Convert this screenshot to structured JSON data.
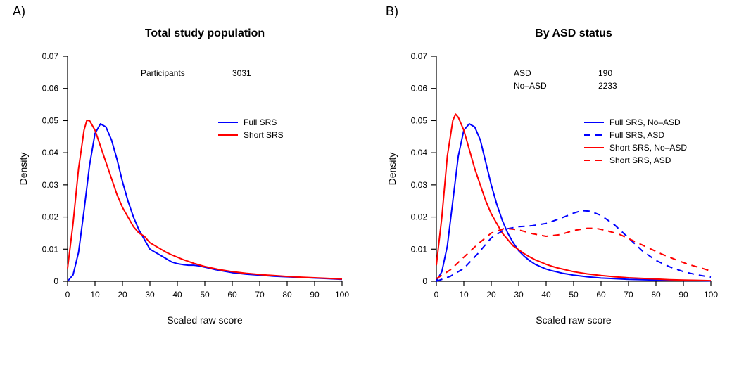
{
  "figure": {
    "background_color": "#ffffff",
    "font_family": "Arial, Helvetica, sans-serif",
    "panel_label_fontsize": 18,
    "axis_color": "#000000",
    "axis_width": 1.2,
    "tick_length": 7,
    "plot_line_width": 2
  },
  "panelA": {
    "label": "A)",
    "title": "Total study population",
    "title_fontsize": 16,
    "title_weight": "bold",
    "xlabel": "Scaled raw score",
    "ylabel": "Density",
    "label_fontsize": 14,
    "tick_fontsize": 12,
    "xlim": [
      0,
      100
    ],
    "xtick_step": 10,
    "ylim": [
      0,
      0.07
    ],
    "ytick_step": 0.01,
    "annotations": [
      {
        "label": "Participants",
        "value": "3031"
      }
    ],
    "annotation_fontsize": 12,
    "legend": {
      "fontsize": 12,
      "line_length": 28,
      "items": [
        {
          "label": "Full SRS",
          "color": "#0000ff",
          "dash": "solid"
        },
        {
          "label": "Short SRS",
          "color": "#ff0000",
          "dash": "solid"
        }
      ]
    },
    "series": [
      {
        "name": "full_srs",
        "color": "#0000ff",
        "dash": "solid",
        "points": [
          [
            0,
            0.0
          ],
          [
            2,
            0.002
          ],
          [
            4,
            0.009
          ],
          [
            6,
            0.022
          ],
          [
            8,
            0.036
          ],
          [
            10,
            0.046
          ],
          [
            12,
            0.049
          ],
          [
            14,
            0.048
          ],
          [
            16,
            0.044
          ],
          [
            18,
            0.038
          ],
          [
            20,
            0.031
          ],
          [
            22,
            0.025
          ],
          [
            24,
            0.02
          ],
          [
            26,
            0.016
          ],
          [
            28,
            0.013
          ],
          [
            30,
            0.01
          ],
          [
            32,
            0.009
          ],
          [
            34,
            0.008
          ],
          [
            36,
            0.007
          ],
          [
            38,
            0.006
          ],
          [
            40,
            0.0055
          ],
          [
            42,
            0.0052
          ],
          [
            44,
            0.005
          ],
          [
            46,
            0.005
          ],
          [
            48,
            0.0048
          ],
          [
            50,
            0.0044
          ],
          [
            52,
            0.004
          ],
          [
            54,
            0.0036
          ],
          [
            56,
            0.0033
          ],
          [
            58,
            0.003
          ],
          [
            60,
            0.0027
          ],
          [
            65,
            0.0022
          ],
          [
            70,
            0.0019
          ],
          [
            75,
            0.0016
          ],
          [
            80,
            0.0014
          ],
          [
            85,
            0.0012
          ],
          [
            90,
            0.001
          ],
          [
            95,
            0.0008
          ],
          [
            100,
            0.0006
          ]
        ]
      },
      {
        "name": "short_srs",
        "color": "#ff0000",
        "dash": "solid",
        "points": [
          [
            0,
            0.004
          ],
          [
            2,
            0.018
          ],
          [
            4,
            0.035
          ],
          [
            6,
            0.047
          ],
          [
            7,
            0.05
          ],
          [
            8,
            0.05
          ],
          [
            10,
            0.047
          ],
          [
            12,
            0.042
          ],
          [
            14,
            0.037
          ],
          [
            16,
            0.032
          ],
          [
            18,
            0.027
          ],
          [
            20,
            0.023
          ],
          [
            22,
            0.02
          ],
          [
            24,
            0.017
          ],
          [
            26,
            0.015
          ],
          [
            28,
            0.014
          ],
          [
            30,
            0.012
          ],
          [
            32,
            0.011
          ],
          [
            34,
            0.01
          ],
          [
            36,
            0.009
          ],
          [
            38,
            0.0082
          ],
          [
            40,
            0.0075
          ],
          [
            42,
            0.0068
          ],
          [
            44,
            0.0062
          ],
          [
            46,
            0.0056
          ],
          [
            48,
            0.0051
          ],
          [
            50,
            0.0046
          ],
          [
            55,
            0.0037
          ],
          [
            60,
            0.003
          ],
          [
            65,
            0.0025
          ],
          [
            70,
            0.0021
          ],
          [
            75,
            0.0018
          ],
          [
            80,
            0.0015
          ],
          [
            85,
            0.0013
          ],
          [
            90,
            0.0011
          ],
          [
            95,
            0.0009
          ],
          [
            100,
            0.0007
          ]
        ]
      }
    ]
  },
  "panelB": {
    "label": "B)",
    "title": "By ASD status",
    "title_fontsize": 16,
    "title_weight": "bold",
    "xlabel": "Scaled raw score",
    "ylabel": "Density",
    "label_fontsize": 14,
    "tick_fontsize": 12,
    "xlim": [
      0,
      100
    ],
    "xtick_step": 10,
    "ylim": [
      0,
      0.07
    ],
    "ytick_step": 0.01,
    "annotations": [
      {
        "label": "ASD",
        "value": "190"
      },
      {
        "label": "No–ASD",
        "value": "2233"
      }
    ],
    "annotation_fontsize": 12,
    "legend": {
      "fontsize": 12,
      "line_length": 28,
      "items": [
        {
          "label": "Full SRS, No–ASD",
          "color": "#0000ff",
          "dash": "solid"
        },
        {
          "label": "Full SRS, ASD",
          "color": "#0000ff",
          "dash": "dashed"
        },
        {
          "label": "Short SRS, No–ASD",
          "color": "#ff0000",
          "dash": "solid"
        },
        {
          "label": "Short SRS, ASD",
          "color": "#ff0000",
          "dash": "dashed"
        }
      ]
    },
    "series": [
      {
        "name": "full_srs_noasd",
        "color": "#0000ff",
        "dash": "solid",
        "points": [
          [
            0,
            0.0
          ],
          [
            2,
            0.003
          ],
          [
            4,
            0.011
          ],
          [
            6,
            0.025
          ],
          [
            8,
            0.039
          ],
          [
            10,
            0.047
          ],
          [
            12,
            0.049
          ],
          [
            14,
            0.048
          ],
          [
            16,
            0.044
          ],
          [
            18,
            0.037
          ],
          [
            20,
            0.03
          ],
          [
            22,
            0.024
          ],
          [
            24,
            0.019
          ],
          [
            26,
            0.015
          ],
          [
            28,
            0.012
          ],
          [
            30,
            0.0095
          ],
          [
            32,
            0.0078
          ],
          [
            34,
            0.0064
          ],
          [
            36,
            0.0053
          ],
          [
            38,
            0.0045
          ],
          [
            40,
            0.0038
          ],
          [
            42,
            0.0033
          ],
          [
            44,
            0.0029
          ],
          [
            46,
            0.0025
          ],
          [
            48,
            0.0022
          ],
          [
            50,
            0.0019
          ],
          [
            55,
            0.0014
          ],
          [
            60,
            0.001
          ],
          [
            65,
            0.0008
          ],
          [
            70,
            0.0006
          ],
          [
            75,
            0.0005
          ],
          [
            80,
            0.0004
          ],
          [
            85,
            0.0003
          ],
          [
            90,
            0.0002
          ],
          [
            95,
            0.0002
          ],
          [
            100,
            0.0001
          ]
        ]
      },
      {
        "name": "short_srs_noasd",
        "color": "#ff0000",
        "dash": "solid",
        "points": [
          [
            0,
            0.005
          ],
          [
            2,
            0.02
          ],
          [
            4,
            0.039
          ],
          [
            6,
            0.05
          ],
          [
            7,
            0.052
          ],
          [
            8,
            0.051
          ],
          [
            10,
            0.047
          ],
          [
            12,
            0.041
          ],
          [
            14,
            0.035
          ],
          [
            16,
            0.03
          ],
          [
            18,
            0.025
          ],
          [
            20,
            0.021
          ],
          [
            22,
            0.018
          ],
          [
            24,
            0.015
          ],
          [
            26,
            0.013
          ],
          [
            28,
            0.011
          ],
          [
            30,
            0.0098
          ],
          [
            32,
            0.0086
          ],
          [
            34,
            0.0076
          ],
          [
            36,
            0.0067
          ],
          [
            38,
            0.006
          ],
          [
            40,
            0.0053
          ],
          [
            42,
            0.0047
          ],
          [
            44,
            0.0042
          ],
          [
            46,
            0.0038
          ],
          [
            48,
            0.0034
          ],
          [
            50,
            0.003
          ],
          [
            55,
            0.0023
          ],
          [
            60,
            0.0018
          ],
          [
            65,
            0.0014
          ],
          [
            70,
            0.0011
          ],
          [
            75,
            0.0009
          ],
          [
            80,
            0.0007
          ],
          [
            85,
            0.0005
          ],
          [
            90,
            0.0004
          ],
          [
            95,
            0.0003
          ],
          [
            100,
            0.0002
          ]
        ]
      },
      {
        "name": "full_srs_asd",
        "color": "#0000ff",
        "dash": "dashed",
        "points": [
          [
            0,
            0.0
          ],
          [
            5,
            0.0015
          ],
          [
            10,
            0.004
          ],
          [
            15,
            0.0085
          ],
          [
            20,
            0.0135
          ],
          [
            25,
            0.0162
          ],
          [
            30,
            0.017
          ],
          [
            35,
            0.0173
          ],
          [
            40,
            0.018
          ],
          [
            45,
            0.0195
          ],
          [
            50,
            0.0212
          ],
          [
            53,
            0.022
          ],
          [
            56,
            0.0218
          ],
          [
            60,
            0.0205
          ],
          [
            65,
            0.0175
          ],
          [
            70,
            0.0135
          ],
          [
            75,
            0.0095
          ],
          [
            80,
            0.0065
          ],
          [
            85,
            0.0045
          ],
          [
            90,
            0.003
          ],
          [
            95,
            0.002
          ],
          [
            100,
            0.0013
          ]
        ]
      },
      {
        "name": "short_srs_asd",
        "color": "#ff0000",
        "dash": "dashed",
        "points": [
          [
            0,
            0.0008
          ],
          [
            5,
            0.0035
          ],
          [
            10,
            0.0075
          ],
          [
            15,
            0.0115
          ],
          [
            20,
            0.015
          ],
          [
            25,
            0.0165
          ],
          [
            30,
            0.016
          ],
          [
            35,
            0.0148
          ],
          [
            40,
            0.014
          ],
          [
            45,
            0.0145
          ],
          [
            50,
            0.0158
          ],
          [
            55,
            0.0165
          ],
          [
            58,
            0.0165
          ],
          [
            62,
            0.0158
          ],
          [
            67,
            0.0145
          ],
          [
            72,
            0.0125
          ],
          [
            77,
            0.0105
          ],
          [
            82,
            0.0085
          ],
          [
            87,
            0.0068
          ],
          [
            92,
            0.0052
          ],
          [
            97,
            0.004
          ],
          [
            100,
            0.0032
          ]
        ]
      }
    ]
  }
}
